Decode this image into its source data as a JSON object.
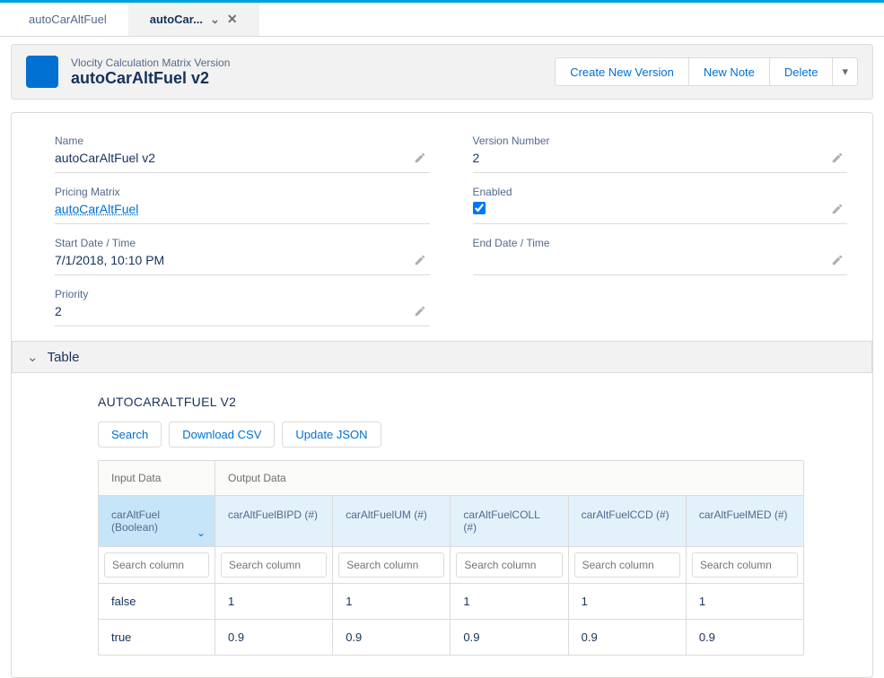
{
  "tabs": {
    "items": [
      {
        "label": "autoCarAltFuel",
        "active": false
      },
      {
        "label": "autoCar...",
        "active": true
      }
    ]
  },
  "header": {
    "subtitle": "Vlocity Calculation Matrix Version",
    "title": "autoCarAltFuel v2",
    "actions": {
      "create": "Create New Version",
      "note": "New Note",
      "delete": "Delete"
    }
  },
  "fields": {
    "name": {
      "label": "Name",
      "value": "autoCarAltFuel v2"
    },
    "versionNumber": {
      "label": "Version Number",
      "value": "2"
    },
    "pricingMatrix": {
      "label": "Pricing Matrix",
      "value": "autoCarAltFuel"
    },
    "enabled": {
      "label": "Enabled",
      "checked": true
    },
    "startDate": {
      "label": "Start Date / Time",
      "value": "7/1/2018, 10:10 PM"
    },
    "endDate": {
      "label": "End Date / Time",
      "value": ""
    },
    "priority": {
      "label": "Priority",
      "value": "2"
    }
  },
  "section": {
    "tableLabel": "Table"
  },
  "matrix": {
    "title": "AUTOCARALTFUEL V2",
    "buttons": {
      "search": "Search",
      "download": "Download CSV",
      "update": "Update JSON"
    },
    "headerSections": {
      "input": "Input Data",
      "output": "Output Data"
    },
    "columns": [
      {
        "name": "carAltFuel",
        "type": "(Boolean)",
        "isInput": true
      },
      {
        "name": "carAltFuelBIPD",
        "type": "(#)",
        "isInput": false
      },
      {
        "name": "carAltFuelUM",
        "type": "(#)",
        "isInput": false
      },
      {
        "name": "carAltFuelCOLL",
        "type": "(#)",
        "isInput": false
      },
      {
        "name": "carAltFuelCCD",
        "type": "(#)",
        "isInput": false
      },
      {
        "name": "carAltFuelMED",
        "type": "(#)",
        "isInput": false
      }
    ],
    "searchPlaceholder": "Search column",
    "rows": [
      [
        "false",
        "1",
        "1",
        "1",
        "1",
        "1"
      ],
      [
        "true",
        "0.9",
        "0.9",
        "0.9",
        "0.9",
        "0.9"
      ]
    ]
  },
  "colors": {
    "accent": "#0070d2",
    "border": "#dddbda",
    "headerBg": "#f3f2f2",
    "inputColBg": "#c6e5f9",
    "colsBg": "#e3f1fb"
  }
}
